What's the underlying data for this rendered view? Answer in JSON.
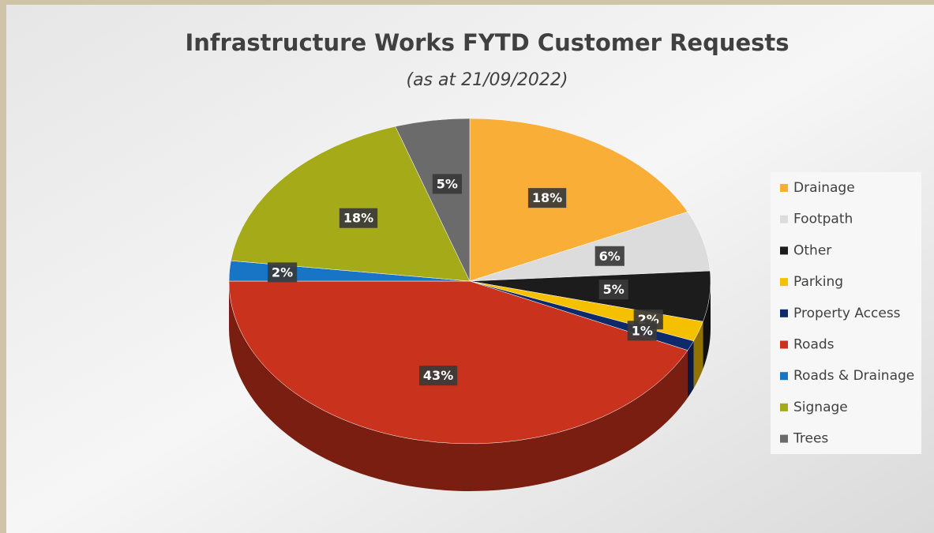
{
  "chart_data": {
    "type": "pie3d",
    "title": "Infrastructure Works FYTD Customer Requests",
    "subtitle": "(as at 21/09/2022)",
    "categories": [
      "Drainage",
      "Footpath",
      "Other",
      "Parking",
      "Property Access",
      "Roads",
      "Roads & Drainage",
      "Signage",
      "Trees"
    ],
    "values": [
      18,
      6,
      5,
      2,
      1,
      43,
      2,
      18,
      5
    ],
    "value_labels": [
      "18%",
      "6%",
      "5%",
      "2%",
      "1%",
      "43%",
      "2%",
      "18%",
      "5%"
    ],
    "colors": [
      "#f9ae38",
      "#dcdcdc",
      "#1c1c1c",
      "#f5c000",
      "#0f2a6b",
      "#c9321c",
      "#1874c4",
      "#a4aa18",
      "#6b6b6b"
    ],
    "legend": "right"
  }
}
